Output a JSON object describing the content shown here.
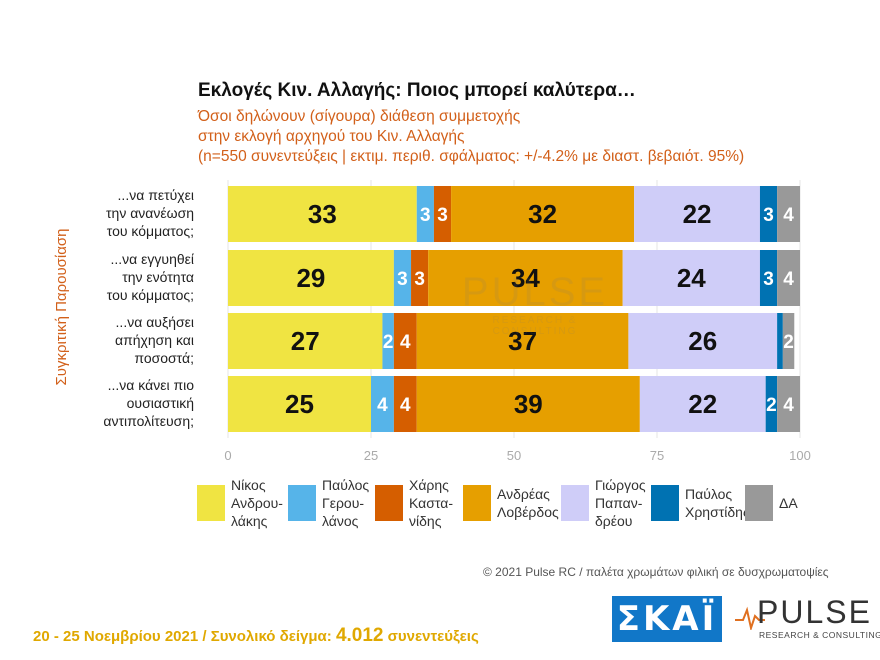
{
  "header": {
    "title": "Εκλογές Κιν. Αλλαγής: Ποιος μπορεί καλύτερα…",
    "subtitle_line1": "Όσοι δηλώνουν (σίγουρα) διάθεση συμμετοχής",
    "subtitle_line2": "στην εκλογή αρχηγού του Κιν. Αλλαγής",
    "subtitle_line3": "(n=550 συνεντεύξεις | εκτιμ. περιθ. σφάλματος: +/-4.2% με διαστ. βεβαιότ. 95%)"
  },
  "watermark": {
    "word": "PULSE",
    "tagline": "RESEARCH & CONSULTING"
  },
  "chart_data": {
    "type": "bar",
    "orientation": "horizontal",
    "stacked": true,
    "ylabel": "Συγκριτική Παρουσίαση",
    "xlim": [
      0,
      100
    ],
    "xticks": [
      0,
      25,
      50,
      75,
      100
    ],
    "categories": [
      [
        "...να πετύχει",
        "την ανανέωση",
        "του κόμματος;"
      ],
      [
        "...να εγγυηθεί",
        "την ενότητα",
        "του κόμματος;"
      ],
      [
        "...να αυξήσει",
        "απήχηση και",
        "ποσοστά;"
      ],
      [
        "...να κάνει πιο",
        "ουσιαστική",
        "αντιπολίτευση;"
      ]
    ],
    "series": [
      {
        "name": [
          "Νίκος",
          "Ανδρου-",
          "λάκης"
        ],
        "color": "#f0e442",
        "values": [
          33,
          29,
          27,
          25
        ]
      },
      {
        "name": [
          "Παύλος",
          "Γερου-",
          "λάνος"
        ],
        "color": "#56b4e9",
        "values": [
          3,
          3,
          2,
          4
        ]
      },
      {
        "name": [
          "Χάρης",
          "Καστα-",
          "νίδης"
        ],
        "color": "#d55e00",
        "values": [
          3,
          3,
          4,
          4
        ]
      },
      {
        "name": [
          "Ανδρέας",
          "Λοβέρδος"
        ],
        "color": "#e69f00",
        "values": [
          32,
          34,
          37,
          39
        ]
      },
      {
        "name": [
          "Γιώργος",
          "Παπαν-",
          "δρέου"
        ],
        "color": "#cfcdf8",
        "values": [
          22,
          24,
          26,
          22
        ]
      },
      {
        "name": [
          "Παύλος",
          "Χρηστίδης"
        ],
        "color": "#0072b2",
        "values": [
          3,
          3,
          1,
          2
        ]
      },
      {
        "name": [
          "ΔΑ"
        ],
        "color": "#999999",
        "values": [
          4,
          4,
          2,
          4
        ]
      }
    ],
    "data_labels": [
      [
        "33",
        "3",
        "3",
        "32",
        "22",
        "3",
        "4"
      ],
      [
        "29",
        "3",
        "3",
        "34",
        "24",
        "3",
        "4"
      ],
      [
        "27",
        "2",
        "4",
        "37",
        "26",
        "",
        "2"
      ],
      [
        "25",
        "4",
        "4",
        "39",
        "22",
        "2",
        "4"
      ]
    ],
    "label_colors": [
      "#111111",
      "#ffffff",
      "#ffffff",
      "#111111",
      "#111111",
      "#ffffff",
      "#ffffff"
    ],
    "legend_position": "bottom",
    "grid": true
  },
  "footer": {
    "copyright": "© 2021 Pulse RC   /   παλέτα χρωμάτων φιλική σε δυσχρωματοψίες",
    "dates": "20 - 25  Νοεμβρίου 2021  /  Συνολικό δείγμα: ",
    "sample": "4.012",
    "sample_suffix": " συνεντεύξεις"
  },
  "logos": {
    "skai": "ΣΚΑΪ",
    "pulse_word": "PULSE",
    "pulse_tagline": "RESEARCH & CONSULTING"
  }
}
